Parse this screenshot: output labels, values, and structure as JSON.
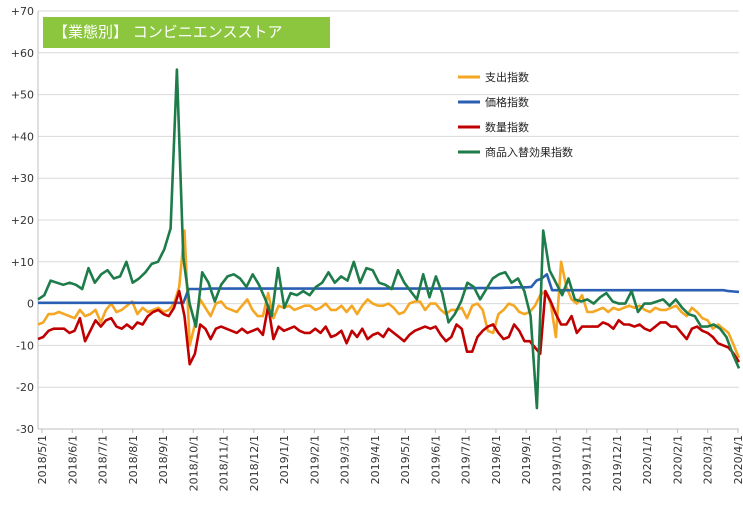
{
  "chart_data": {
    "type": "line",
    "title": "【業態別】 コンビニエンスストア",
    "ylim": [
      -30,
      70
    ],
    "y_ticks": [
      "+70",
      "+60",
      "+50",
      "+40",
      "+30",
      "+20",
      "+10",
      "0",
      "-10",
      "-20",
      "-30"
    ],
    "y_tick_values": [
      70,
      60,
      50,
      40,
      30,
      20,
      10,
      0,
      -10,
      -20,
      -30
    ],
    "x_tick_labels": [
      "2018/5/1",
      "2018/6/1",
      "2018/7/1",
      "2018/8/1",
      "2018/9/1",
      "2018/10/1",
      "2018/11/1",
      "2018/12/1",
      "2019/1/1",
      "2019/2/1",
      "2019/3/1",
      "2019/4/1",
      "2019/5/1",
      "2019/6/1",
      "2019/7/1",
      "2019/8/1",
      "2019/9/1",
      "2019/10/1",
      "2019/11/1",
      "2019/12/1",
      "2020/1/1",
      "2020/2/1",
      "2020/3/1",
      "2020/4/1"
    ],
    "grid": true,
    "legend_position": "top-right",
    "series": [
      {
        "name": "支出指数",
        "color": "#f5a623",
        "values": [
          -5.0,
          -4.5,
          -2.5,
          -2.5,
          -2.0,
          -2.5,
          -3.0,
          -3.5,
          -1.5,
          -3.0,
          -2.5,
          -1.5,
          -4.5,
          -1.5,
          0.0,
          -2.0,
          -1.5,
          -0.5,
          0.5,
          -2.5,
          -1.0,
          -2.0,
          -1.5,
          -1.0,
          -2.0,
          -1.5,
          0.0,
          4.0,
          17.5,
          -10.0,
          -5.0,
          1.0,
          -1.0,
          -3.0,
          0.0,
          0.5,
          -1.0,
          -1.5,
          -2.0,
          -0.5,
          1.0,
          -1.5,
          -3.0,
          -3.0,
          2.5,
          -3.5,
          -0.5,
          -1.0,
          -0.5,
          -1.5,
          -1.0,
          -0.5,
          -0.5,
          -1.5,
          -1.0,
          0.0,
          -1.5,
          -1.5,
          -0.5,
          -2.0,
          -0.5,
          -2.5,
          -0.5,
          1.0,
          0.0,
          -0.5,
          -0.5,
          0.0,
          -1.0,
          -2.5,
          -2.0,
          0.0,
          0.5,
          0.5,
          -1.5,
          0.0,
          0.0,
          -1.5,
          -2.5,
          -1.5,
          -1.5,
          -1.0,
          -3.5,
          -0.5,
          0.0,
          -1.5,
          -6.5,
          -7.0,
          -2.5,
          -1.5,
          0.0,
          -0.5,
          -2.0,
          -2.5,
          -2.0,
          -0.5,
          2.0,
          3.0,
          0.0,
          -8.0,
          10.0,
          4.0,
          1.0,
          0.0,
          2.0,
          -2.0,
          -2.0,
          -1.5,
          -1.0,
          -2.0,
          -1.0,
          -1.5,
          -1.0,
          -0.5,
          -1.0,
          -0.5,
          -1.5,
          -2.0,
          -1.0,
          -1.5,
          -1.5,
          -1.0,
          -0.5,
          -2.0,
          -3.0,
          -1.0,
          -2.0,
          -3.5,
          -4.0,
          -6.0,
          -5.0,
          -6.0,
          -7.0,
          -10.0,
          -13.0
        ]
      },
      {
        "name": "価格指数",
        "color": "#2b5fb4",
        "values": [
          0.2,
          0.2,
          0.2,
          0.2,
          0.2,
          0.2,
          0.2,
          0.2,
          0.2,
          0.2,
          0.2,
          0.2,
          0.2,
          0.2,
          0.2,
          0.2,
          0.2,
          0.2,
          0.2,
          0.2,
          0.2,
          0.2,
          0.2,
          0.2,
          0.2,
          0.2,
          0.2,
          0.2,
          0.2,
          3.5,
          3.5,
          3.5,
          3.5,
          3.6,
          3.6,
          3.6,
          3.6,
          3.6,
          3.6,
          3.6,
          3.6,
          3.6,
          3.6,
          3.6,
          3.6,
          3.6,
          3.6,
          3.6,
          3.6,
          3.6,
          3.6,
          3.6,
          3.6,
          3.6,
          3.6,
          3.6,
          3.6,
          3.6,
          3.6,
          3.6,
          3.6,
          3.6,
          3.6,
          3.6,
          3.6,
          3.6,
          3.6,
          3.6,
          3.6,
          3.6,
          3.6,
          3.6,
          3.6,
          3.6,
          3.6,
          3.6,
          3.6,
          3.6,
          3.6,
          3.6,
          3.6,
          3.6,
          3.6,
          3.7,
          3.7,
          3.7,
          3.7,
          3.7,
          3.7,
          3.7,
          3.8,
          3.8,
          3.9,
          3.9,
          3.9,
          4.0,
          5.5,
          6.0,
          7.0,
          3.2,
          3.2,
          3.2,
          3.2,
          3.2,
          3.2,
          3.2,
          3.2,
          3.2,
          3.2,
          3.2,
          3.2,
          3.2,
          3.2,
          3.2,
          3.2,
          3.2,
          3.2,
          3.2,
          3.2,
          3.2,
          3.2,
          3.2,
          3.2,
          3.2,
          3.2,
          3.2,
          3.2,
          3.2,
          3.2,
          3.2,
          3.2,
          3.2,
          3.2,
          3.0,
          2.9,
          2.8
        ]
      },
      {
        "name": "数量指数",
        "color": "#c00000",
        "values": [
          -8.5,
          -8.0,
          -6.5,
          -6.0,
          -6.0,
          -6.0,
          -7.0,
          -6.5,
          -3.5,
          -9.0,
          -6.5,
          -4.0,
          -5.5,
          -4.0,
          -3.5,
          -5.5,
          -6.0,
          -5.0,
          -6.0,
          -4.5,
          -5.0,
          -3.0,
          -2.0,
          -1.5,
          -2.5,
          -3.0,
          -1.0,
          3.0,
          -3.0,
          -14.5,
          -12.0,
          -5.0,
          -6.0,
          -8.5,
          -6.0,
          -5.5,
          -6.0,
          -6.5,
          -7.0,
          -6.0,
          -7.0,
          -6.5,
          -6.0,
          -7.5,
          -0.5,
          -8.5,
          -5.5,
          -6.5,
          -6.0,
          -5.5,
          -6.5,
          -7.0,
          -7.0,
          -6.0,
          -7.0,
          -5.5,
          -8.0,
          -7.5,
          -6.5,
          -9.5,
          -6.5,
          -8.0,
          -6.0,
          -8.5,
          -7.5,
          -7.0,
          -8.0,
          -6.0,
          -7.0,
          -8.0,
          -9.0,
          -7.5,
          -6.5,
          -6.0,
          -5.5,
          -6.0,
          -5.5,
          -7.5,
          -9.0,
          -8.0,
          -5.0,
          -6.0,
          -11.5,
          -11.5,
          -8.0,
          -6.5,
          -5.5,
          -5.0,
          -7.0,
          -8.5,
          -8.0,
          -5.0,
          -6.5,
          -9.0,
          -9.0,
          -10.5,
          -12.0,
          3.0,
          0.5,
          -2.5,
          -5.0,
          -5.0,
          -3.0,
          -7.0,
          -5.5,
          -5.5,
          -5.5,
          -5.5,
          -4.5,
          -5.0,
          -6.0,
          -4.0,
          -5.0,
          -5.0,
          -5.5,
          -5.0,
          -6.0,
          -6.5,
          -5.5,
          -4.5,
          -4.5,
          -5.5,
          -5.5,
          -7.0,
          -8.5,
          -6.0,
          -5.5,
          -6.5,
          -7.0,
          -8.0,
          -9.5,
          -10.0,
          -10.5,
          -12.0,
          -14.0
        ]
      },
      {
        "name": "商品入替効果指数",
        "color": "#1e7b4a",
        "values": [
          1.0,
          2.0,
          5.5,
          5.0,
          4.5,
          5.0,
          4.5,
          3.5,
          8.5,
          5.0,
          7.0,
          8.0,
          6.0,
          6.5,
          10.0,
          5.0,
          6.0,
          7.5,
          9.5,
          10.0,
          13.0,
          18.0,
          56.0,
          11.0,
          0.0,
          -5.5,
          7.5,
          5.0,
          0.5,
          4.5,
          6.5,
          7.0,
          6.0,
          4.0,
          7.0,
          4.5,
          1.0,
          -3.0,
          8.5,
          -1.0,
          2.5,
          2.0,
          3.0,
          2.0,
          4.0,
          5.0,
          7.5,
          5.0,
          6.5,
          5.5,
          10.0,
          5.0,
          8.5,
          8.0,
          5.0,
          4.5,
          3.5,
          8.0,
          5.0,
          3.0,
          1.0,
          7.0,
          1.5,
          6.5,
          2.5,
          -4.5,
          -2.5,
          0.5,
          5.0,
          4.0,
          1.0,
          3.5,
          6.0,
          7.0,
          7.5,
          5.0,
          6.0,
          3.0,
          -3.0,
          -25.0,
          17.5,
          8.0,
          5.0,
          2.0,
          6.0,
          1.0,
          0.5,
          1.0,
          0.0,
          1.5,
          2.5,
          0.5,
          0.0,
          0.0,
          3.0,
          -2.0,
          0.0,
          0.0,
          0.5,
          1.0,
          -0.5,
          1.0,
          -1.0,
          -2.5,
          -3.0,
          -5.5,
          -5.5,
          -5.0,
          -6.0,
          -8.0,
          -12.0,
          -15.5
        ]
      }
    ]
  }
}
